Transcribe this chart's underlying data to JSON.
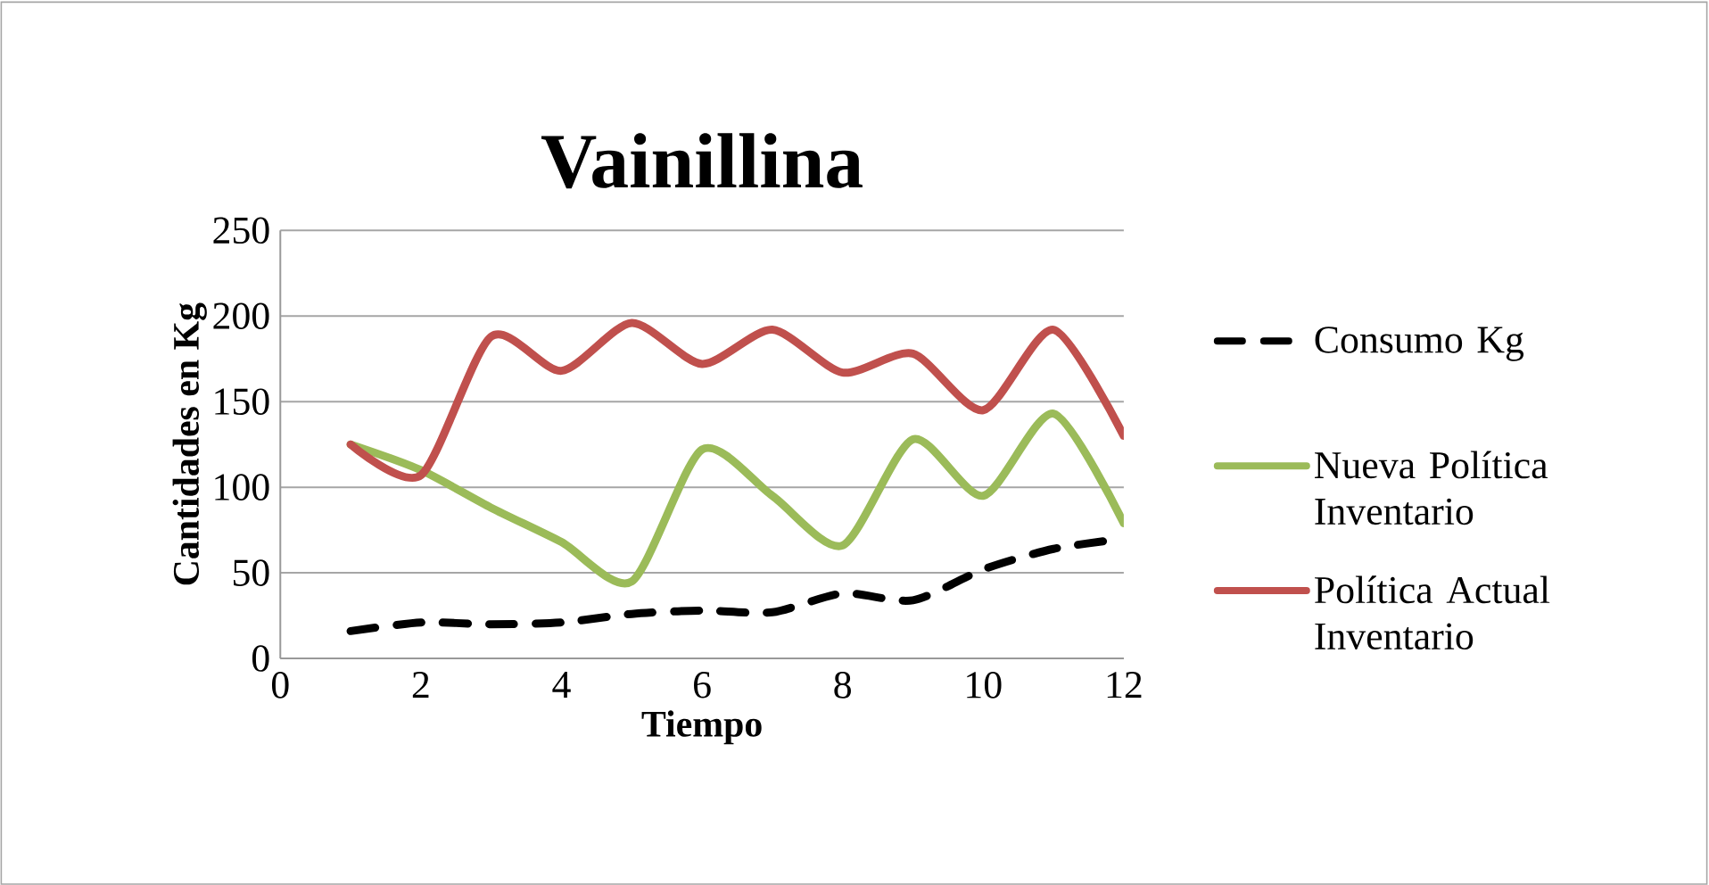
{
  "chart_data": {
    "type": "line",
    "title": "Vainillina",
    "xlabel": "Tiempo",
    "ylabel": "Cantidades en Kg",
    "x": [
      1,
      2,
      3,
      4,
      5,
      6,
      7,
      8,
      9,
      10,
      11,
      12
    ],
    "series": [
      {
        "name": "Consumo Kg",
        "color": "#000000",
        "line_style": "dashed",
        "values": [
          16,
          21,
          20,
          21,
          26,
          28,
          27,
          38,
          34,
          52,
          64,
          70
        ]
      },
      {
        "name": "Nueva Política Inventario",
        "color": "#9bbb59",
        "line_style": "solid",
        "values": [
          125,
          110,
          88,
          68,
          45,
          122,
          95,
          66,
          128,
          95,
          143,
          79
        ]
      },
      {
        "name": "Política Actual Inventario",
        "color": "#c0504d",
        "line_style": "solid",
        "values": [
          125,
          107,
          188,
          168,
          196,
          172,
          192,
          167,
          178,
          145,
          192,
          130
        ]
      }
    ],
    "xlim": [
      0,
      12
    ],
    "xticks": [
      0,
      2,
      4,
      6,
      8,
      10,
      12
    ],
    "ylim": [
      0,
      250
    ],
    "yticks": [
      0,
      50,
      100,
      150,
      200,
      250
    ],
    "grid": "y",
    "legend": "right",
    "marker": "none"
  }
}
